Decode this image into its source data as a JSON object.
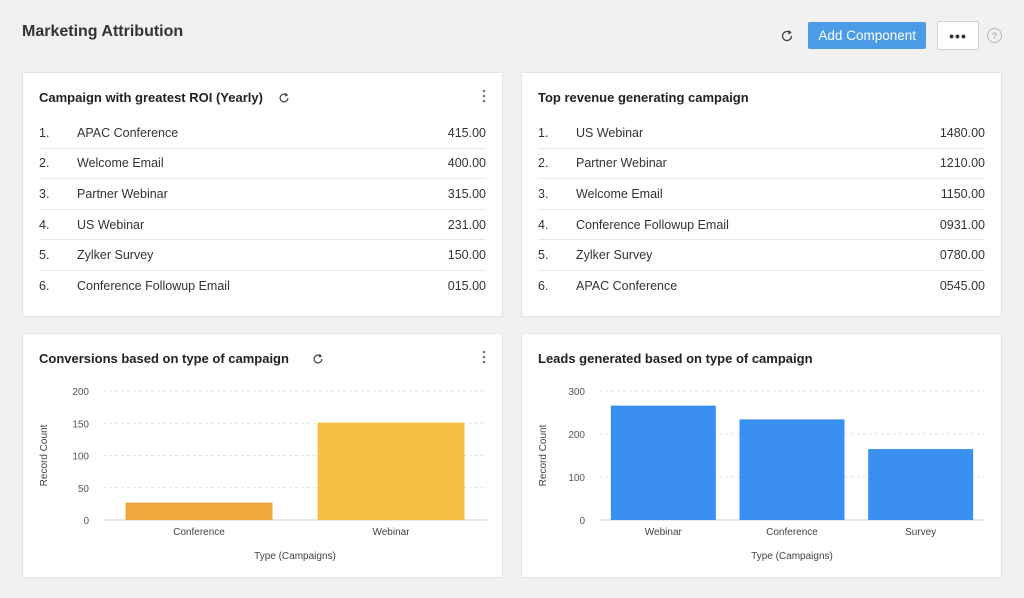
{
  "page": {
    "title": "Marketing Attribution",
    "add_component_label": "Add Component",
    "more_label": "•••",
    "help_label": "?"
  },
  "roi_card": {
    "title": "Campaign with greatest ROI (Yearly)",
    "rows": [
      {
        "rank": "1.",
        "name": "APAC Conference",
        "value": "415.00"
      },
      {
        "rank": "2.",
        "name": "Welcome Email",
        "value": "400.00"
      },
      {
        "rank": "3.",
        "name": "Partner Webinar",
        "value": "315.00"
      },
      {
        "rank": "4.",
        "name": "US Webinar",
        "value": "231.00"
      },
      {
        "rank": "5.",
        "name": "Zylker Survey",
        "value": "150.00"
      },
      {
        "rank": "6.",
        "name": "Conference Followup Email",
        "value": "015.00"
      }
    ]
  },
  "revenue_card": {
    "title": "Top revenue generating campaign",
    "rows": [
      {
        "rank": "1.",
        "name": "US Webinar",
        "value": "1480.00"
      },
      {
        "rank": "2.",
        "name": "Partner Webinar",
        "value": "1210.00"
      },
      {
        "rank": "3.",
        "name": "Welcome Email",
        "value": "1150.00"
      },
      {
        "rank": "4.",
        "name": "Conference Followup Email",
        "value": "0931.00"
      },
      {
        "rank": "5.",
        "name": "Zylker Survey",
        "value": "0780.00"
      },
      {
        "rank": "6.",
        "name": "APAC Conference",
        "value": "0545.00"
      }
    ]
  },
  "conversions_card": {
    "title": "Conversions based on type of campaign"
  },
  "leads_card": {
    "title": "Leads generated based on type of campaign"
  },
  "chart_data": [
    {
      "type": "bar",
      "title": "Conversions based on type of campaign",
      "xlabel": "Type (Campaigns)",
      "ylabel": "Record Count",
      "categories": [
        "Conference",
        "Webinar"
      ],
      "values": [
        27,
        151
      ],
      "colors": [
        "#f0a83c",
        "#f6bf45"
      ],
      "ylim": [
        0,
        200
      ],
      "yticks": [
        0,
        50,
        100,
        150,
        200
      ],
      "grid": true
    },
    {
      "type": "bar",
      "title": "Leads generated based on type of campaign",
      "xlabel": "Type (Campaigns)",
      "ylabel": "Record Count",
      "categories": [
        "Webinar",
        "Conference",
        "Survey"
      ],
      "values": [
        266,
        234,
        165
      ],
      "colors": [
        "#3b8ff0",
        "#3b8ff0",
        "#3b8ff0"
      ],
      "ylim": [
        0,
        300
      ],
      "yticks": [
        0,
        100,
        200,
        300
      ],
      "grid": true
    }
  ]
}
